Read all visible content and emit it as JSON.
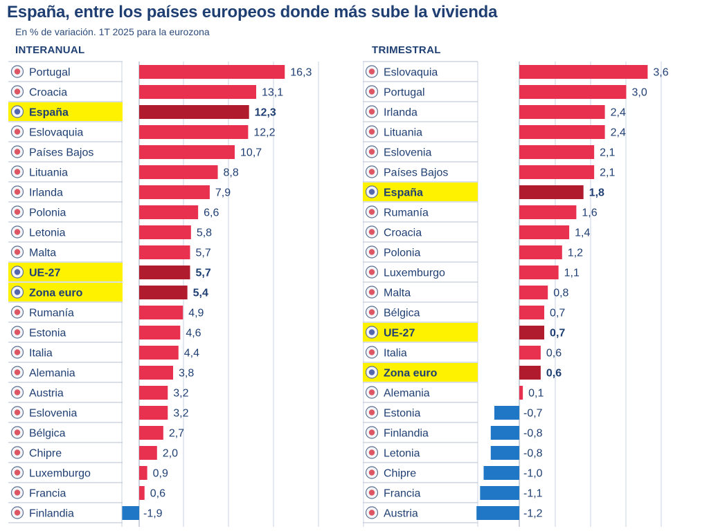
{
  "title": "España, entre los países europeos donde más sube la vivienda",
  "subtitle": "En % de variación. 1T 2025 para la eurozona",
  "colors": {
    "positive": "#e8304f",
    "highlight": "#b01c2e",
    "negative": "#1f77c6",
    "highlight_bg": "#fff200",
    "text": "#1f3f73"
  },
  "chart_data": [
    {
      "type": "bar",
      "orientation": "horizontal",
      "title": "INTERANUAL",
      "categories": [
        "Portugal",
        "Croacia",
        "España",
        "Eslovaquia",
        "Países Bajos",
        "Lituania",
        "Irlanda",
        "Polonia",
        "Letonia",
        "Malta",
        "UE-27",
        "Zona euro",
        "Rumanía",
        "Estonia",
        "Italia",
        "Alemania",
        "Austria",
        "Eslovenia",
        "Bélgica",
        "Chipre",
        "Luxemburgo",
        "Francia",
        "Finlandia"
      ],
      "values": [
        16.3,
        13.1,
        12.3,
        12.2,
        10.7,
        8.8,
        7.9,
        6.6,
        5.8,
        5.7,
        5.7,
        5.4,
        4.9,
        4.6,
        4.4,
        3.8,
        3.2,
        3.2,
        2.7,
        2.0,
        0.9,
        0.6,
        -1.9
      ],
      "labels": [
        "16,3",
        "13,1",
        "12,3",
        "12,2",
        "10,7",
        "8,8",
        "7,9",
        "6,6",
        "5,8",
        "5,7",
        "5,7",
        "5,4",
        "4,9",
        "4,6",
        "4,4",
        "3,8",
        "3,2",
        "3,2",
        "2,7",
        "2,0",
        "0,9",
        "0,6",
        "-1,9"
      ],
      "highlighted": [
        "España",
        "UE-27",
        "Zona euro"
      ],
      "grid": true
    },
    {
      "type": "bar",
      "orientation": "horizontal",
      "title": "TRIMESTRAL",
      "categories": [
        "Eslovaquia",
        "Portugal",
        "Irlanda",
        "Lituania",
        "Eslovenia",
        "Países Bajos",
        "España",
        "Rumanía",
        "Croacia",
        "Polonia",
        "Luxemburgo",
        "Malta",
        "Bélgica",
        "UE-27",
        "Italia",
        "Zona euro",
        "Alemania",
        "Estonia",
        "Finlandia",
        "Letonia",
        "Chipre",
        "Francia",
        "Austria"
      ],
      "values": [
        3.6,
        3.0,
        2.4,
        2.4,
        2.1,
        2.1,
        1.8,
        1.6,
        1.4,
        1.2,
        1.1,
        0.8,
        0.7,
        0.7,
        0.6,
        0.6,
        0.1,
        -0.7,
        -0.8,
        -0.8,
        -1.0,
        -1.1,
        -1.2
      ],
      "labels": [
        "3,6",
        "3,0",
        "2,4",
        "2,4",
        "2,1",
        "2,1",
        "1,8",
        "1,6",
        "1,4",
        "1,2",
        "1,1",
        "0,8",
        "0,7",
        "0,7",
        "0,6",
        "0,6",
        "0,1",
        "-0,7",
        "-0,8",
        "-0,8",
        "-1,0",
        "-1,1",
        "-1,2"
      ],
      "highlighted": [
        "España",
        "UE-27",
        "Zona euro"
      ],
      "grid": true
    }
  ]
}
